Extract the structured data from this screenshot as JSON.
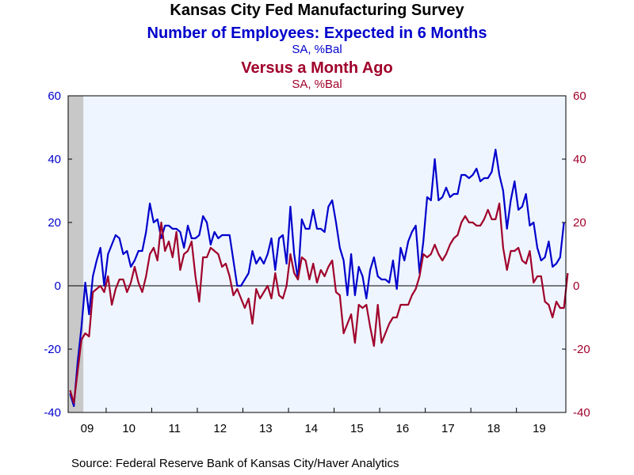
{
  "chart_data": {
    "type": "line",
    "title": "Kansas City Fed Manufacturing Survey",
    "series_titles": [
      {
        "title": "Number of Employees: Expected in 6 Months",
        "units": "SA, %Bal",
        "color": "#0000cc"
      },
      {
        "title": "Versus a Month Ago",
        "units": "SA, %Bal",
        "color": "#a0002a"
      }
    ],
    "source": "Source:  Federal Reserve Bank of Kansas City/Haver Analytics",
    "x_tick_labels": [
      "09",
      "10",
      "11",
      "12",
      "13",
      "14",
      "15",
      "16",
      "17",
      "18",
      "19"
    ],
    "x_start": "2009-03",
    "frequency": "monthly",
    "recession_shading": {
      "start": "2009-03",
      "end": "2009-06",
      "color": "#c8c8c8"
    },
    "ylim": [
      -40,
      60
    ],
    "y_ticks": [
      -40,
      -20,
      0,
      20,
      40,
      60
    ],
    "y_tick_labels_left": [
      "-40",
      "-20",
      "0",
      "20",
      "40",
      "60"
    ],
    "y_tick_labels_right": [
      "-40",
      "-20",
      "0",
      "20",
      "40",
      "60"
    ],
    "plot_background": "#eef5ff",
    "zero_line": true,
    "series": [
      {
        "key": "expected_6m",
        "color": "#0000cc",
        "values": [
          -34,
          -38,
          -24,
          -13,
          1,
          -9,
          3,
          8,
          12,
          0,
          10,
          13,
          16,
          15,
          10,
          11,
          6,
          8,
          11,
          11,
          17,
          26,
          20,
          21,
          15,
          19,
          19,
          18,
          18,
          17,
          12,
          19,
          15,
          15,
          16,
          22,
          20,
          13,
          17,
          15,
          16,
          16,
          16,
          8,
          0,
          0,
          2,
          4,
          11,
          7,
          9,
          7,
          10,
          15,
          5,
          15,
          16,
          7,
          25,
          10,
          2,
          21,
          18,
          18,
          24,
          18,
          18,
          17,
          25,
          27,
          20,
          12,
          8,
          -3,
          10,
          -3,
          6,
          3,
          -4,
          5,
          9,
          3,
          2,
          2,
          1,
          8,
          -1,
          12,
          8,
          14,
          17,
          19,
          4,
          14,
          28,
          27,
          40,
          27,
          28,
          31,
          28,
          29,
          29,
          35,
          35,
          34,
          35,
          37,
          33,
          34,
          34,
          36,
          43,
          35,
          30,
          18,
          27,
          33,
          24,
          25,
          29,
          19,
          20,
          12,
          8,
          9,
          14,
          6,
          7,
          9,
          20
        ]
      },
      {
        "key": "vs_month_ago",
        "color": "#a0002a",
        "values": [
          -33,
          -37,
          -27,
          -17,
          -15,
          -16,
          -2,
          -1,
          0,
          -2,
          3,
          -6,
          -1,
          2,
          2,
          -2,
          1,
          6,
          1,
          -2,
          3,
          10,
          12,
          8,
          20,
          11,
          14,
          9,
          17,
          5,
          10,
          11,
          14,
          3,
          -5,
          9,
          9,
          12,
          11,
          10,
          6,
          7,
          3,
          -3,
          -1,
          -4,
          -7,
          -4,
          -12,
          -1,
          -4,
          -2,
          0,
          -4,
          4,
          -3,
          -4,
          0,
          10,
          4,
          2,
          9,
          8,
          2,
          7,
          1,
          5,
          3,
          6,
          8,
          -2,
          -3,
          -15,
          -12,
          -9,
          -18,
          -6,
          -7,
          -6,
          -13,
          -19,
          -6,
          -18,
          -15,
          -12,
          -10,
          -10,
          -6,
          -6,
          -6,
          -3,
          -1,
          3,
          10,
          9,
          10,
          13,
          10,
          8,
          10,
          13,
          15,
          16,
          20,
          22,
          20,
          20,
          19,
          19,
          21,
          24,
          21,
          21,
          26,
          12,
          5,
          11,
          11,
          12,
          8,
          7,
          11,
          1,
          3,
          3,
          -5,
          -6,
          -10,
          -5,
          -7,
          -7,
          4
        ]
      }
    ]
  }
}
